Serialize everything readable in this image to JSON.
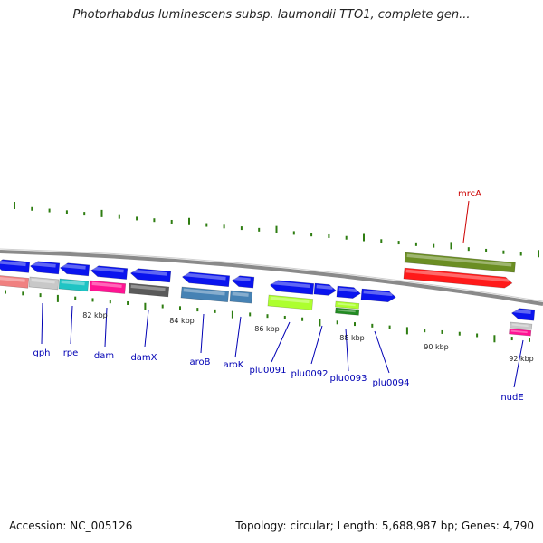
{
  "title": "Photorhabdus luminescens subsp. laumondii TTO1, complete gen...",
  "footer": {
    "accession": "Accession: NC_005126",
    "summary": "Topology: circular; Length: 5,688,987 bp; Genes: 4,790"
  },
  "colors": {
    "forward_cds": "#0a14ee",
    "reverse_cds": "#0a14ee",
    "backbone": "#8a8a8a",
    "tick": "#2e7d11",
    "gene_label": "#0000b4",
    "highlight_label": "#cc0000"
  },
  "scale_labels": [
    "82 kbp",
    "84 kbp",
    "86 kbp",
    "88 kbp",
    "90 kbp",
    "92 kbp"
  ],
  "genes": [
    {
      "name": "",
      "strand": "forward",
      "label_color": "gene_label"
    },
    {
      "name": "gph",
      "strand": "reverse",
      "label_color": "gene_label"
    },
    {
      "name": "rpe",
      "strand": "reverse",
      "label_color": "gene_label"
    },
    {
      "name": "dam",
      "strand": "reverse",
      "label_color": "gene_label"
    },
    {
      "name": "damX",
      "strand": "reverse",
      "label_color": "gene_label"
    },
    {
      "name": "aroB",
      "strand": "reverse",
      "label_color": "gene_label"
    },
    {
      "name": "aroK",
      "strand": "reverse",
      "label_color": "gene_label"
    },
    {
      "name": "plu0091",
      "strand": "reverse",
      "label_color": "gene_label"
    },
    {
      "name": "plu0092",
      "strand": "reverse",
      "label_color": "gene_label"
    },
    {
      "name": "plu0093",
      "strand": "forward",
      "label_color": "gene_label"
    },
    {
      "name": "plu0094",
      "strand": "forward",
      "label_color": "gene_label"
    },
    {
      "name": "mrcA",
      "strand": "forward",
      "label_color": "highlight_label"
    },
    {
      "name": "nudE",
      "strand": "reverse",
      "label_color": "gene_label"
    }
  ]
}
